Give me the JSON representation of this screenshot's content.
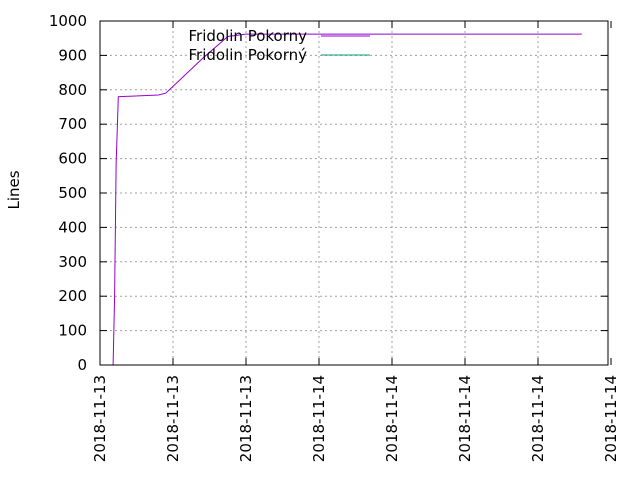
{
  "chart_data": {
    "type": "line",
    "xlabel": "",
    "ylabel": "Lines",
    "ylim": [
      0,
      1000
    ],
    "yticks": [
      0,
      100,
      200,
      300,
      400,
      500,
      600,
      700,
      800,
      900,
      1000
    ],
    "x_tick_labels": [
      "2018-11-13",
      "2018-11-13",
      "2018-11-13",
      "2018-11-14",
      "2018-11-14",
      "2018-11-14",
      "2018-11-14",
      "2018-11-14"
    ],
    "grid": true,
    "legend_position": "top",
    "series": [
      {
        "name": "Fridolin Pokorny",
        "color": "#9400d3",
        "points": [
          [
            0.18,
            0
          ],
          [
            0.2,
            200
          ],
          [
            0.22,
            580
          ],
          [
            0.25,
            780
          ],
          [
            0.6,
            783
          ],
          [
            0.8,
            785
          ],
          [
            0.9,
            790
          ],
          [
            1.1,
            830
          ],
          [
            1.4,
            890
          ],
          [
            1.75,
            955
          ],
          [
            2.0,
            962
          ],
          [
            6.6,
            962
          ]
        ]
      },
      {
        "name": "Fridolin Pokorný",
        "color": "#009e73",
        "points": []
      }
    ]
  }
}
